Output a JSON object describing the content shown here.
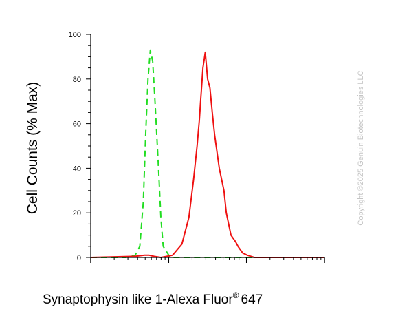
{
  "chart_data": {
    "type": "area",
    "ylabel": "Cell Counts (% Max)",
    "xlabel": "Synaptophysin like 1-Alexa Fluor",
    "xlabel_sup": "®",
    "xlabel_suffix": "647",
    "ylim": [
      0,
      100
    ],
    "xlim": [
      0,
      1
    ],
    "yticks": [
      "100",
      "80",
      "60",
      "40",
      "20",
      "0"
    ],
    "grid": false,
    "x_axis_scale": "log (unlabeled decades)",
    "series": [
      {
        "color": "#22dd22",
        "style": "dashed",
        "x": [
          0.0,
          0.15,
          0.19,
          0.21,
          0.225,
          0.235,
          0.245,
          0.255,
          0.265,
          0.275,
          0.29,
          0.3,
          0.31,
          0.34,
          0.4,
          1.0
        ],
        "y": [
          0,
          0,
          1,
          5,
          25,
          55,
          80,
          93,
          88,
          70,
          40,
          18,
          5,
          0,
          0,
          0
        ]
      },
      {
        "color": "#ee1111",
        "style": "solid",
        "x": [
          0.0,
          0.19,
          0.23,
          0.25,
          0.27,
          0.3,
          0.35,
          0.39,
          0.42,
          0.44,
          0.455,
          0.465,
          0.47,
          0.48,
          0.49,
          0.5,
          0.51,
          0.52,
          0.53,
          0.55,
          0.57,
          0.58,
          0.6,
          0.62,
          0.63,
          0.65,
          0.67,
          0.7,
          1.0
        ],
        "y": [
          0,
          0.5,
          1,
          1,
          0.5,
          0,
          1,
          6,
          18,
          35,
          50,
          62,
          70,
          85,
          92,
          80,
          76,
          65,
          55,
          40,
          30,
          20,
          10,
          7,
          5,
          2,
          1,
          0,
          0
        ]
      }
    ]
  },
  "watermark": "Copyright ©2025 Genuin Biotechnologies LLC"
}
